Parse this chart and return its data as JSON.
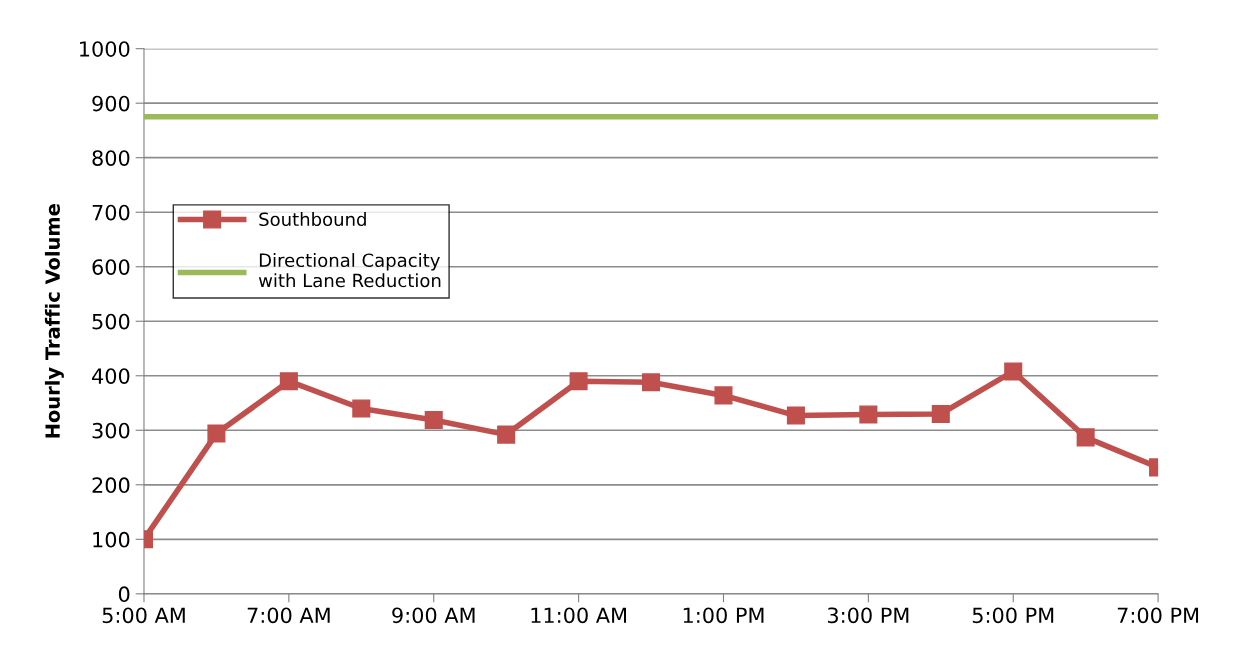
{
  "chart_data": {
    "type": "line",
    "ylabel": "Hourly Traffic Volume",
    "x": [
      5,
      6,
      7,
      8,
      9,
      10,
      11,
      12,
      13,
      14,
      15,
      16,
      17,
      18,
      19
    ],
    "xlim": [
      5,
      19
    ],
    "xticks": [
      {
        "value": 5,
        "label": "5:00 AM"
      },
      {
        "value": 7,
        "label": "7:00 AM"
      },
      {
        "value": 9,
        "label": "9:00 AM"
      },
      {
        "value": 11,
        "label": "11:00 AM"
      },
      {
        "value": 13,
        "label": "1:00 PM"
      },
      {
        "value": 15,
        "label": "3:00 PM"
      },
      {
        "value": 17,
        "label": "5:00 PM"
      },
      {
        "value": 19,
        "label": "7:00 PM"
      }
    ],
    "ylim": [
      0,
      1000
    ],
    "yticks": [
      0,
      100,
      200,
      300,
      400,
      500,
      600,
      700,
      800,
      900,
      1000
    ],
    "grid": "y",
    "legend": "top left",
    "series": [
      {
        "name": "Southbound",
        "color": "#c0504d",
        "marker": "square",
        "values": [
          100,
          294,
          390,
          340,
          319,
          292,
          390,
          388,
          364,
          327,
          329,
          330,
          408,
          287,
          232
        ]
      },
      {
        "name": "Directional Capacity\nwith Lane Reduction",
        "color": "#9bbb59",
        "marker": "none",
        "values": [
          875,
          875,
          875,
          875,
          875,
          875,
          875,
          875,
          875,
          875,
          875,
          875,
          875,
          875,
          875
        ]
      }
    ]
  }
}
